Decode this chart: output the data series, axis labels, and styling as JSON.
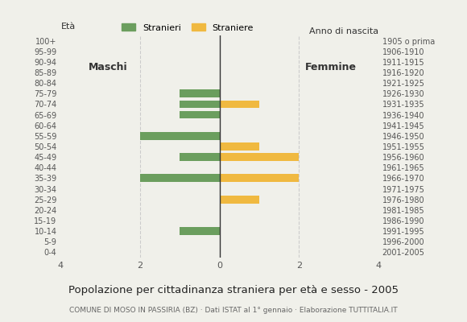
{
  "age_groups": [
    "100+",
    "95-99",
    "90-94",
    "85-89",
    "80-84",
    "75-79",
    "70-74",
    "65-69",
    "60-64",
    "55-59",
    "50-54",
    "45-49",
    "40-44",
    "35-39",
    "30-34",
    "25-29",
    "20-24",
    "15-19",
    "10-14",
    "5-9",
    "0-4"
  ],
  "birth_years": [
    "1905 o prima",
    "1906-1910",
    "1911-1915",
    "1916-1920",
    "1921-1925",
    "1926-1930",
    "1931-1935",
    "1936-1940",
    "1941-1945",
    "1946-1950",
    "1951-1955",
    "1956-1960",
    "1961-1965",
    "1966-1970",
    "1971-1975",
    "1976-1980",
    "1981-1985",
    "1986-1990",
    "1991-1995",
    "1996-2000",
    "2001-2005"
  ],
  "males": [
    0,
    0,
    0,
    0,
    0,
    1,
    1,
    1,
    0,
    2,
    0,
    1,
    0,
    2,
    0,
    0,
    0,
    0,
    1,
    0,
    0
  ],
  "females": [
    0,
    0,
    0,
    0,
    0,
    0,
    1,
    0,
    0,
    0,
    1,
    2,
    0,
    2,
    0,
    1,
    0,
    0,
    0,
    0,
    0
  ],
  "male_color": "#6b9e5e",
  "female_color": "#f0b940",
  "background_color": "#f0f0ea",
  "grid_color": "#cccccc",
  "title": "Popolazione per cittadinanza straniera per età e sesso - 2005",
  "subtitle": "COMUNE DI MOSO IN PASSIRIA (BZ) · Dati ISTAT al 1° gennaio · Elaborazione TUTTITALIA.IT",
  "legend_male": "Stranieri",
  "legend_female": "Straniere",
  "label_eta": "Età",
  "label_males": "Maschi",
  "label_females": "Femmine",
  "label_birth": "Anno di nascita",
  "xlim": 4,
  "xticks": [
    -4,
    -2,
    0,
    2,
    4
  ],
  "xticklabels": [
    "4",
    "2",
    "0",
    "2",
    "4"
  ]
}
